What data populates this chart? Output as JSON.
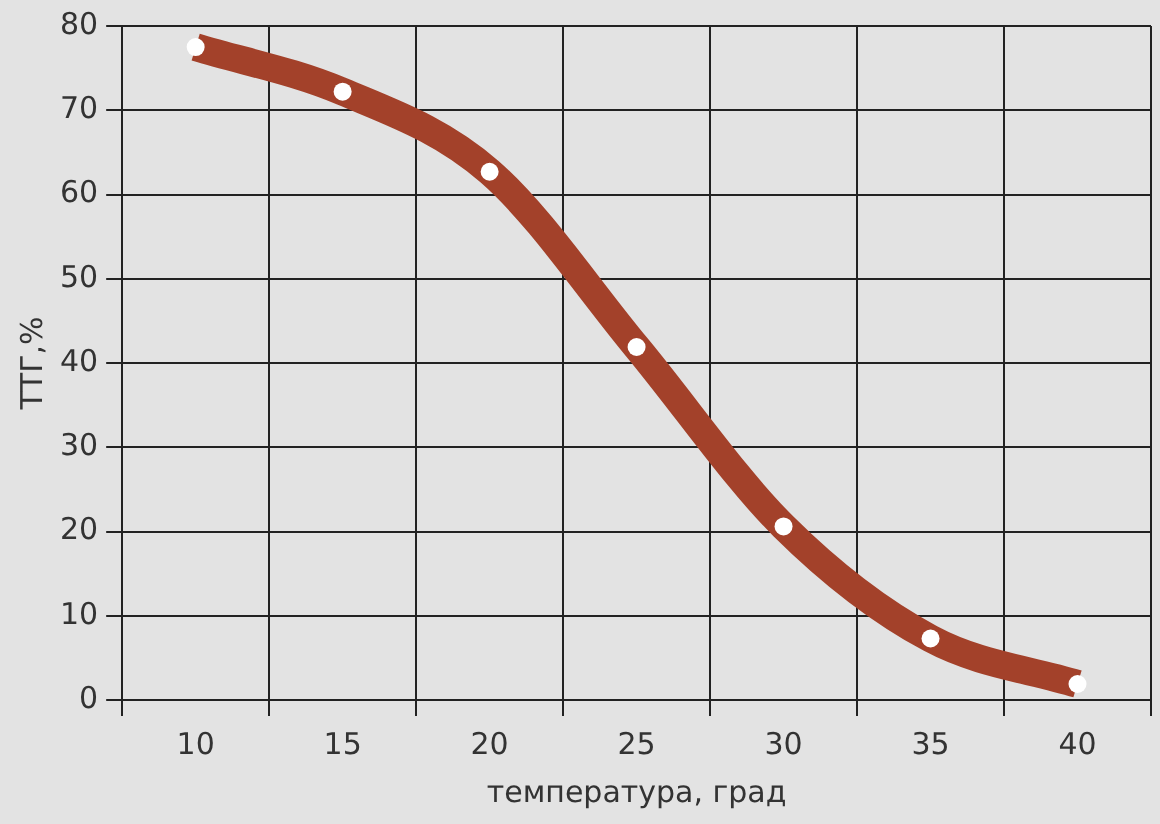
{
  "chart_data": {
    "type": "line",
    "xlabel": "температура, град",
    "ylabel": "ТТГ,%",
    "categories": [
      "10",
      "15",
      "20",
      "25",
      "30",
      "35",
      "40"
    ],
    "series": [
      {
        "color": "#a3412a",
        "values": [
          77.5,
          72.2,
          62.7,
          41.9,
          20.6,
          7.3,
          1.9
        ]
      }
    ],
    "ylim": [
      0,
      80
    ],
    "yticks": [
      0,
      10,
      20,
      30,
      40,
      50,
      60,
      70,
      80
    ],
    "grid": true,
    "legend": false,
    "marker": "circle",
    "line_style": "solid"
  }
}
